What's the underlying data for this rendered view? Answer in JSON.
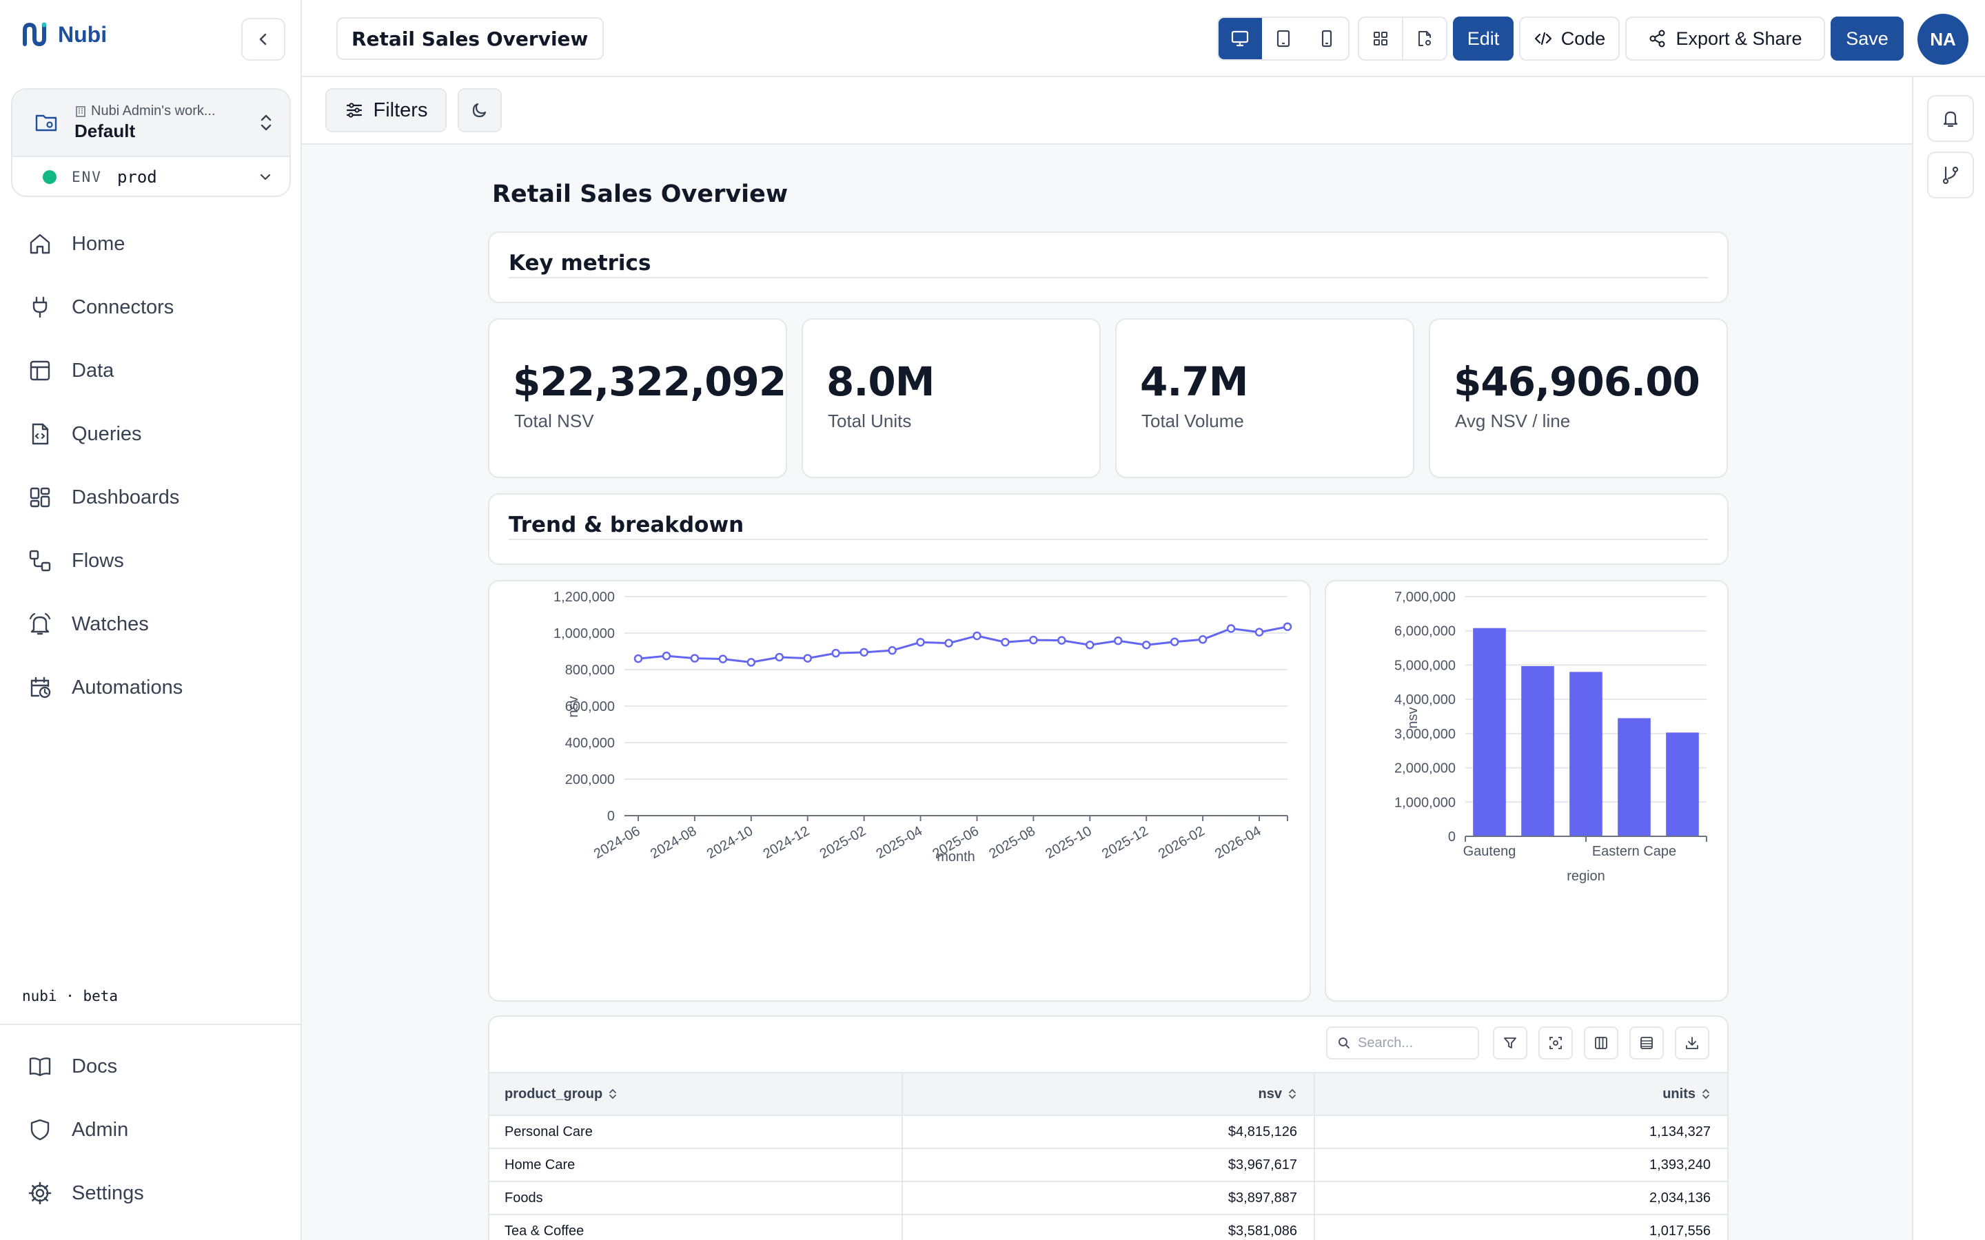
{
  "app": {
    "name": "Nubi",
    "beta_label": "nubi · beta"
  },
  "workspace": {
    "owner": "Nubi Admin's work...",
    "name": "Default",
    "env_label": "ENV",
    "env_value": "prod"
  },
  "nav": {
    "items": [
      {
        "label": "Home",
        "icon": "home-icon"
      },
      {
        "label": "Connectors",
        "icon": "plug-icon"
      },
      {
        "label": "Data",
        "icon": "table-icon"
      },
      {
        "label": "Queries",
        "icon": "file-code-icon"
      },
      {
        "label": "Dashboards",
        "icon": "dashboard-icon"
      },
      {
        "label": "Flows",
        "icon": "flow-icon"
      },
      {
        "label": "Watches",
        "icon": "bell-icon"
      },
      {
        "label": "Automations",
        "icon": "calendar-clock-icon"
      }
    ],
    "bottom": [
      {
        "label": "Docs",
        "icon": "book-icon"
      },
      {
        "label": "Admin",
        "icon": "shield-icon"
      },
      {
        "label": "Settings",
        "icon": "gear-icon"
      }
    ]
  },
  "topbar": {
    "dashboard_title": "Retail Sales Overview",
    "edit_label": "Edit",
    "code_label": "Code",
    "export_label": "Export & Share",
    "save_label": "Save",
    "avatar_initials": "NA"
  },
  "toolbar": {
    "filters_label": "Filters"
  },
  "dashboard": {
    "title": "Retail Sales Overview",
    "sections": {
      "key_metrics": "Key metrics",
      "trend": "Trend & breakdown"
    },
    "kpis": [
      {
        "value": "$22,322,092.35",
        "label": "Total NSV"
      },
      {
        "value": "8.0M",
        "label": "Total Units"
      },
      {
        "value": "4.7M",
        "label": "Total Volume"
      },
      {
        "value": "$46,906.00",
        "label": "Avg NSV / line"
      }
    ]
  },
  "chart_data": [
    {
      "type": "line",
      "xlabel": "month",
      "ylabel": "nsv",
      "ylim": [
        0,
        1200000
      ],
      "yticks": [
        "0",
        "200,000",
        "400,000",
        "600,000",
        "800,000",
        "1,000,000",
        "1,200,000"
      ],
      "x_tick_labels": [
        "2024-06",
        "2024-08",
        "2024-10",
        "2024-12",
        "2025-02",
        "2025-04",
        "2025-06",
        "2025-08",
        "2025-10",
        "2025-12",
        "2026-02",
        "2026-04"
      ],
      "x": [
        "2024-06",
        "2024-07",
        "2024-08",
        "2024-09",
        "2024-10",
        "2024-11",
        "2024-12",
        "2025-01",
        "2025-02",
        "2025-03",
        "2025-04",
        "2025-05",
        "2025-06",
        "2025-07",
        "2025-08",
        "2025-09",
        "2025-10",
        "2025-11",
        "2025-12",
        "2026-01",
        "2026-02",
        "2026-03",
        "2026-04",
        "2026-05"
      ],
      "values": [
        860000,
        875000,
        862000,
        858000,
        840000,
        868000,
        862000,
        890000,
        895000,
        905000,
        950000,
        945000,
        985000,
        950000,
        962000,
        960000,
        935000,
        958000,
        935000,
        952000,
        965000,
        1025000,
        1005000,
        1035000
      ],
      "color": "#6366f1",
      "grid": true
    },
    {
      "type": "bar",
      "xlabel": "region",
      "ylabel": "nsv",
      "ylim": [
        0,
        7000000
      ],
      "yticks": [
        "0",
        "1,000,000",
        "2,000,000",
        "3,000,000",
        "4,000,000",
        "5,000,000",
        "6,000,000",
        "7,000,000"
      ],
      "categories": [
        "Gauteng",
        "",
        "",
        "Eastern Cape",
        ""
      ],
      "values": [
        6080000,
        4970000,
        4800000,
        3450000,
        3030000
      ],
      "color": "#6366f1",
      "grid": true
    }
  ],
  "table": {
    "search_placeholder": "Search...",
    "columns": [
      "product_group",
      "nsv",
      "units"
    ],
    "rows": [
      [
        "Personal Care",
        "$4,815,126",
        "1,134,327"
      ],
      [
        "Home Care",
        "$3,967,617",
        "1,393,240"
      ],
      [
        "Foods",
        "$3,897,887",
        "2,034,136"
      ],
      [
        "Tea & Coffee",
        "$3,581,086",
        "1,017,556"
      ]
    ]
  }
}
